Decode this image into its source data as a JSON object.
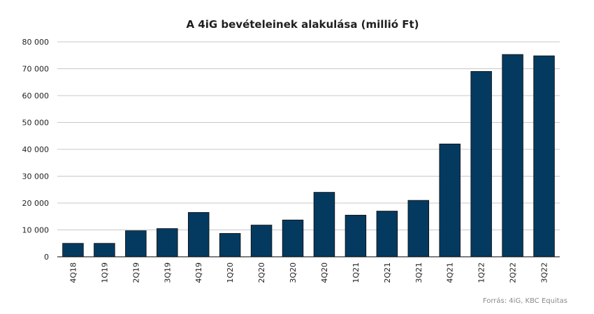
{
  "chart_data": {
    "type": "bar",
    "title": "A 4iG bevételeinek  alakulása (millió Ft)",
    "categories": [
      "4Q18",
      "1Q19",
      "2Q19",
      "3Q19",
      "4Q19",
      "1Q20",
      "2Q20",
      "3Q20",
      "4Q20",
      "1Q21",
      "2Q21",
      "3Q21",
      "4Q21",
      "1Q22",
      "2Q22",
      "3Q22"
    ],
    "values": [
      5000,
      5000,
      9700,
      10500,
      16500,
      8700,
      11800,
      13700,
      24000,
      15500,
      17000,
      21000,
      42000,
      69000,
      75300,
      74800
    ],
    "ylim": [
      0,
      80000
    ],
    "yticks": [
      0,
      10000,
      20000,
      30000,
      40000,
      50000,
      60000,
      70000,
      80000
    ],
    "ytick_labels": [
      "0",
      "10 000",
      "20 000",
      "30 000",
      "40 000",
      "50 000",
      "60 000",
      "70 000",
      "80 000"
    ],
    "xlabel": "",
    "ylabel": "",
    "grid": true,
    "bar_color": "#053a60",
    "grid_color": "#c8c8c8",
    "source": "Forrás: 4iG, KBC Equitas"
  }
}
